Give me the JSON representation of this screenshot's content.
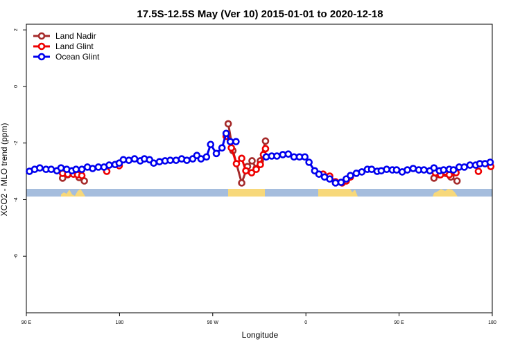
{
  "chart_data": {
    "type": "line",
    "title": "17.5S-12.5S May (Ver 10)   2015-01-01 to 2020-12-18",
    "x_label": "Longitude",
    "y_label": "XCO2 - MLO trend (ppm)",
    "xlim": [
      90,
      540
    ],
    "ylim": [
      -8,
      2.2
    ],
    "xticks": [
      {
        "value": 90,
        "label": "90 E"
      },
      {
        "value": 180,
        "label": "180"
      },
      {
        "value": 270,
        "label": "90 W"
      },
      {
        "value": 360,
        "label": "0"
      },
      {
        "value": 450,
        "label": "90 E"
      },
      {
        "value": 540,
        "label": "180"
      }
    ],
    "yticks": [
      2,
      0,
      -2,
      -4,
      -6
    ],
    "legend": "top-left",
    "series": [
      {
        "name": "Land Nadir",
        "color": "#a52a2a",
        "x": [
          125,
          130,
          135.5,
          141,
          146,
          null,
          285,
          289.5,
          298,
          303.6,
          308,
          312,
          316,
          321,
          null,
          483.7,
          489,
          500,
          506
        ],
        "values": [
          -3.24,
          -3.12,
          -3.05,
          -3.22,
          -3.34,
          null,
          -1.32,
          -2.27,
          -3.41,
          -2.83,
          -2.63,
          -2.9,
          -2.63,
          -1.93,
          null,
          -3.24,
          -3.12,
          -3.2,
          -3.34
        ]
      },
      {
        "name": "Land Glint",
        "color": "#ee0000",
        "x": [
          125,
          130,
          135.5,
          139.5,
          143.6,
          null,
          167.7,
          null,
          179.7,
          null,
          283,
          288,
          292.9,
          298,
          302,
          307.6,
          312,
          316,
          319,
          321,
          null,
          376.6,
          383,
          388.6,
          395,
          399,
          403,
          null,
          485,
          490,
          498.5,
          505,
          null,
          526.6,
          null,
          538.6
        ],
        "values": [
          -3.07,
          -3.1,
          -3.1,
          -3.12,
          -3.15,
          null,
          -3.0,
          null,
          -2.8,
          null,
          -1.76,
          -2.17,
          -2.73,
          -2.54,
          -2.98,
          -3.05,
          -2.93,
          -2.76,
          -2.41,
          -2.2,
          null,
          -3.1,
          -3.17,
          -3.37,
          -3.41,
          -3.34,
          -3.2,
          null,
          -3.05,
          -3.12,
          -3.12,
          -3.05,
          null,
          -3.0,
          null,
          -2.83
        ]
      },
      {
        "name": "Ocean Glint",
        "color": "#0000ee",
        "x": [
          93,
          98,
          103,
          109,
          114,
          119.5,
          123.5,
          129,
          134,
          138,
          143.6,
          149,
          154,
          159.6,
          165,
          170,
          175.7,
          179.7,
          183.7,
          189,
          194.5,
          200,
          204,
          209,
          213,
          218.6,
          224,
          229,
          234.6,
          240,
          245,
          250.7,
          254.7,
          258.7,
          264,
          268,
          273.5,
          279,
          283,
          287,
          292.5,
          null,
          321.7,
          327,
          332,
          337.7,
          343,
          348.5,
          353.8,
          359,
          363,
          368.5,
          372.6,
          378,
          383,
          388.6,
          394,
          399,
          403,
          408.7,
          414,
          419.4,
          423.5,
          428.8,
          432.8,
          438,
          443.5,
          447.6,
          453,
          458,
          463.6,
          469,
          474,
          479.7,
          483.7,
          489,
          493,
          498.5,
          502.5,
          508,
          513,
          518.5,
          524,
          528,
          533,
          538
        ],
        "values": [
          -3.0,
          -2.93,
          -2.88,
          -2.93,
          -2.93,
          -2.98,
          -2.88,
          -2.93,
          -2.98,
          -2.93,
          -2.93,
          -2.85,
          -2.9,
          -2.85,
          -2.85,
          -2.78,
          -2.76,
          -2.71,
          -2.59,
          -2.61,
          -2.56,
          -2.63,
          -2.56,
          -2.59,
          -2.71,
          -2.66,
          -2.63,
          -2.61,
          -2.61,
          -2.56,
          -2.61,
          -2.56,
          -2.44,
          -2.56,
          -2.49,
          -2.05,
          -2.37,
          -2.17,
          -1.66,
          -1.95,
          -1.95,
          null,
          -2.49,
          -2.46,
          -2.46,
          -2.41,
          -2.39,
          -2.49,
          -2.49,
          -2.49,
          -2.68,
          -2.98,
          -3.1,
          -3.2,
          -3.27,
          -3.41,
          -3.39,
          -3.27,
          -3.15,
          -3.07,
          -3.02,
          -2.93,
          -2.93,
          -3.0,
          -2.98,
          -2.93,
          -2.95,
          -2.95,
          -3.02,
          -2.95,
          -2.9,
          -2.95,
          -2.95,
          -2.98,
          -2.88,
          -2.98,
          -2.95,
          -2.93,
          -2.95,
          -2.85,
          -2.85,
          -2.78,
          -2.78,
          -2.73,
          -2.73,
          -2.68
        ]
      }
    ]
  }
}
